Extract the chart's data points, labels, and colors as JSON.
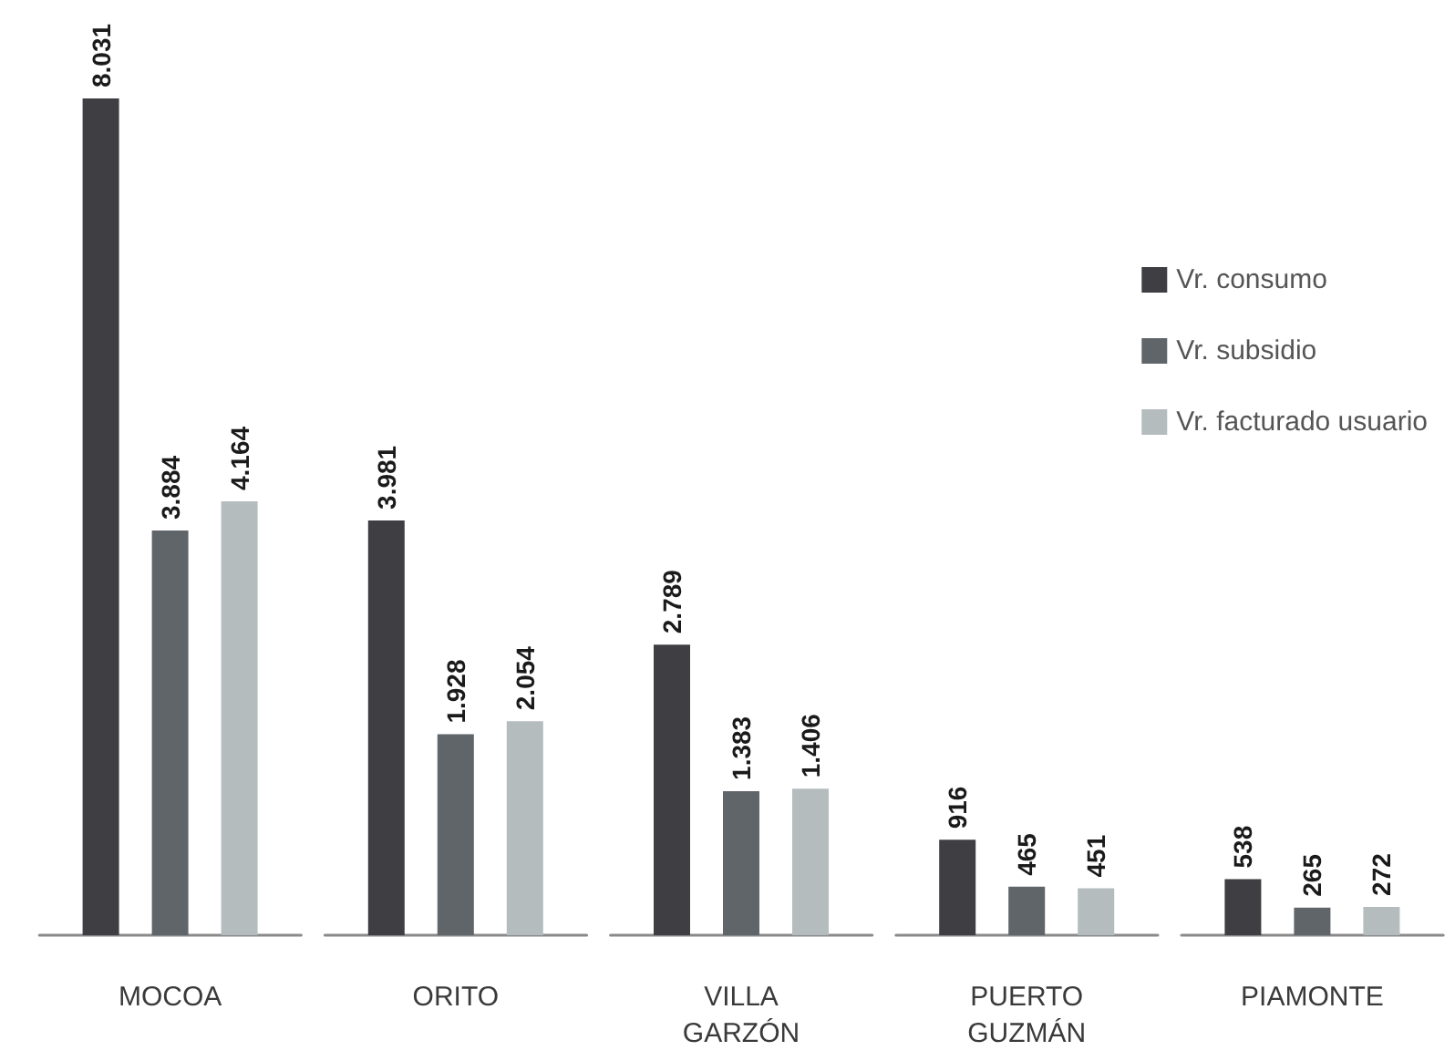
{
  "chart_data": {
    "type": "bar",
    "categories": [
      "MOCOA",
      "ORITO",
      "VILLA\nGARZÓN",
      "PUERTO\nGUZMÁN",
      "PIAMONTE"
    ],
    "series": [
      {
        "name": "Vr. consumo",
        "color": "#3e3e43",
        "values": [
          8031,
          3981,
          2789,
          916,
          538
        ],
        "value_labels": [
          "8.031",
          "3.981",
          "2.789",
          "916",
          "538"
        ]
      },
      {
        "name": "Vr. subsidio",
        "color": "#60656a",
        "values": [
          3884,
          1928,
          1383,
          465,
          265
        ],
        "value_labels": [
          "3.884",
          "1.928",
          "1.383",
          "465",
          "265"
        ]
      },
      {
        "name": "Vr. facturado usuario",
        "color": "#b4bcbe",
        "values": [
          4164,
          2054,
          1406,
          451,
          272
        ],
        "value_labels": [
          "4.164",
          "2.054",
          "1.406",
          "451",
          "272"
        ]
      }
    ],
    "legend": "top right"
  }
}
